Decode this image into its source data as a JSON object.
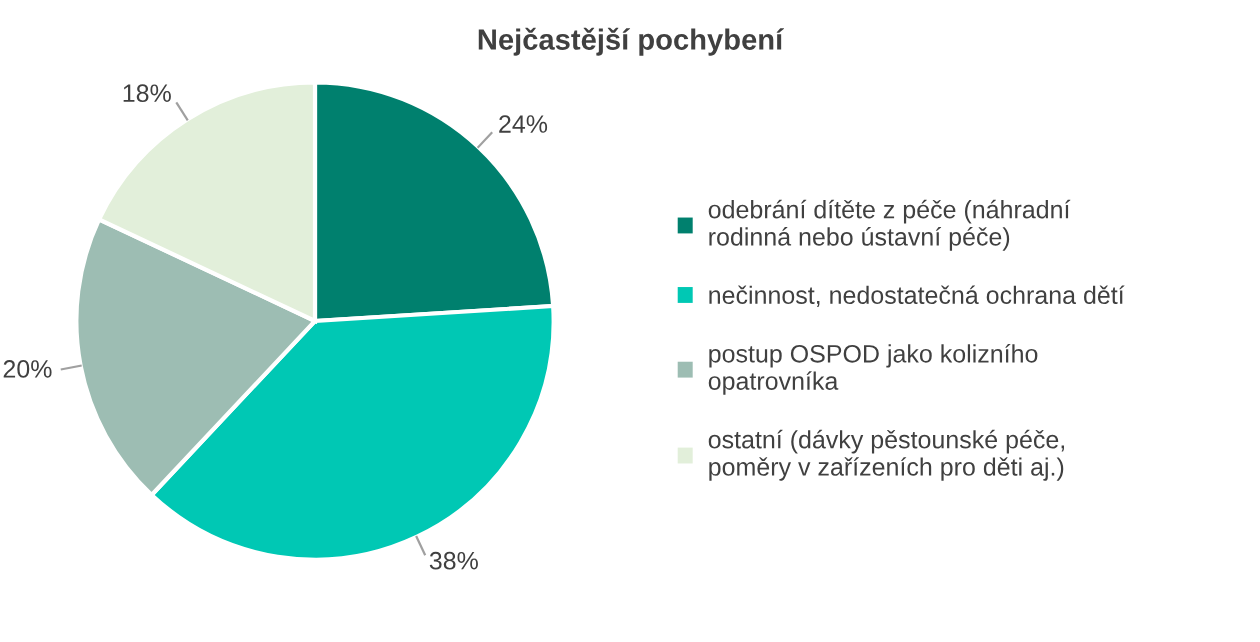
{
  "chart_data": {
    "type": "pie",
    "title": "Nejčastější pochybení",
    "categories": [
      "odebrání dítěte z péče (náhradní\nrodinná nebo ústavní péče)",
      "nečinnost, nedostatečná ochrana dětí",
      "postup OSPOD jako kolizního\nopatrovníka",
      "ostatní (dávky pěstounské péče,\npoměry v zařízeních pro děti aj.)"
    ],
    "values": [
      24,
      38,
      20,
      18
    ],
    "colors": [
      "#00806e",
      "#00c8b4",
      "#9dbdb3",
      "#e2efda"
    ],
    "value_labels": [
      "24%",
      "38%",
      "20%",
      "18%"
    ],
    "legend": "right"
  }
}
